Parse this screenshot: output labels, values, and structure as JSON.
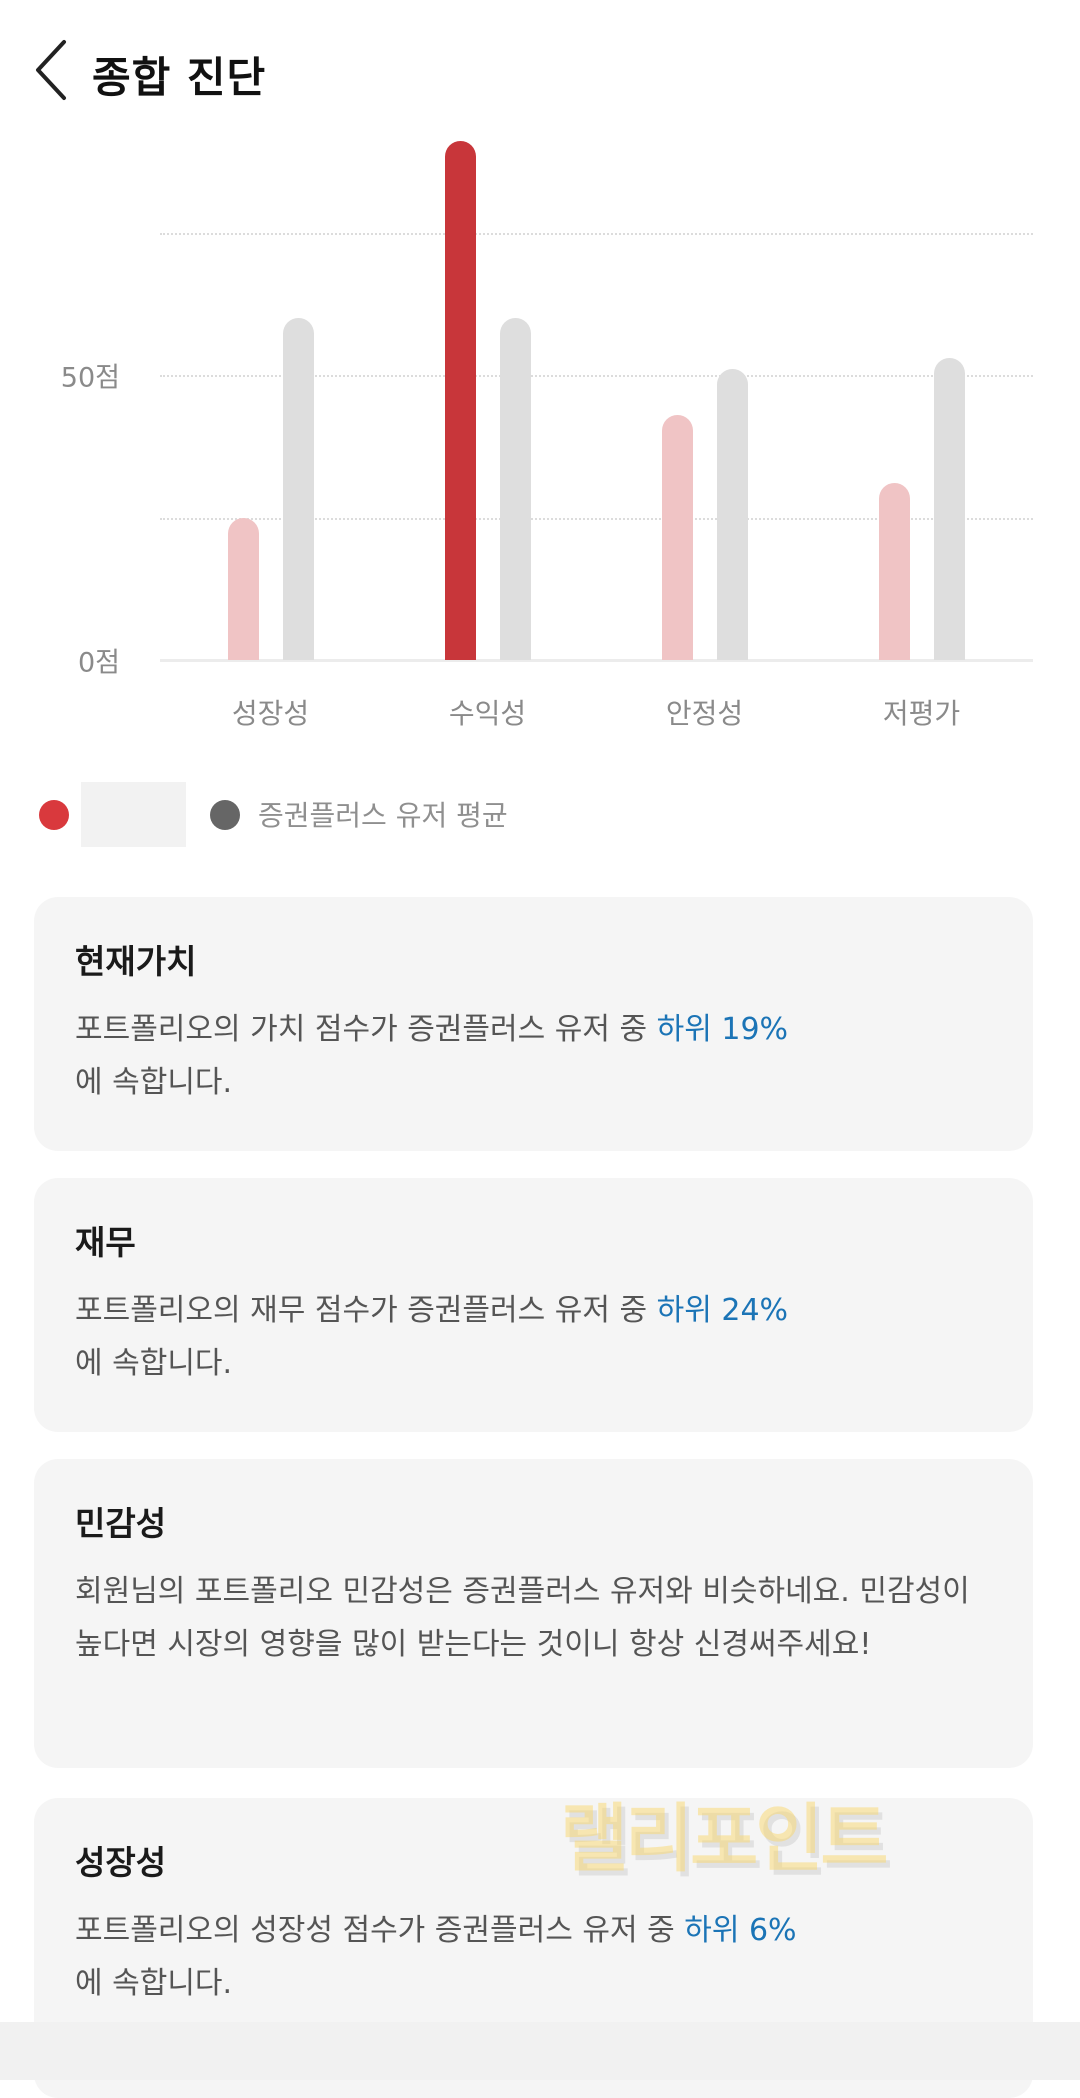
{
  "header": {
    "title": "종합 진단",
    "back_icon": "chevron-left-icon"
  },
  "chart_data": {
    "type": "bar",
    "categories": [
      "성장성",
      "수익성",
      "안정성",
      "저평가"
    ],
    "series": [
      {
        "values": [
          25,
          91,
          43,
          31
        ],
        "color": "#f0c4c5",
        "highlight_color": "#c8363a",
        "highlight_index": 1
      },
      {
        "name": "증권플러스 유저 평균",
        "values": [
          60,
          60,
          51,
          53
        ],
        "color": "#dedede"
      }
    ],
    "yticks": [
      {
        "value": 0,
        "label": "0점"
      },
      {
        "value": 50,
        "label": "50점"
      }
    ],
    "gridlines": [
      25,
      50,
      75
    ],
    "ylim": [
      0,
      100
    ],
    "grid": true,
    "legend_placement": "bottom-left"
  },
  "legend": {
    "items": [
      {
        "color": "#d9393d",
        "label": ""
      },
      {
        "color": "#666666",
        "label": "증권플러스 유저 평균"
      }
    ]
  },
  "cards": [
    {
      "title": "현재가치",
      "text": "포트폴리오의 가치 점수가 증권플러스 유저 중 ",
      "highlight": "하위 19%",
      "suffix": "에 속합니다."
    },
    {
      "title": "재무",
      "text": "포트폴리오의 재무 점수가 증권플러스 유저 중 ",
      "highlight": "하위 24%",
      "suffix": "에 속합니다."
    },
    {
      "title": "민감성",
      "text": "회원님의 포트폴리오 민감성은 증권플러스 유저와 비슷하네요. 민감성이 높다면 시장의 영향을 많이 받는다는 것이니 항상 신경써주세요!",
      "highlight": "",
      "suffix": ""
    },
    {
      "title": "성장성",
      "text": "포트폴리오의 성장성 점수가 증권플러스 유저 중 ",
      "highlight": "하위 6%",
      "suffix": "에 속합니다."
    }
  ],
  "watermark": "랠리포인트",
  "colors": {
    "accent": "#c8363a",
    "highlight_text": "#1b74b6"
  }
}
